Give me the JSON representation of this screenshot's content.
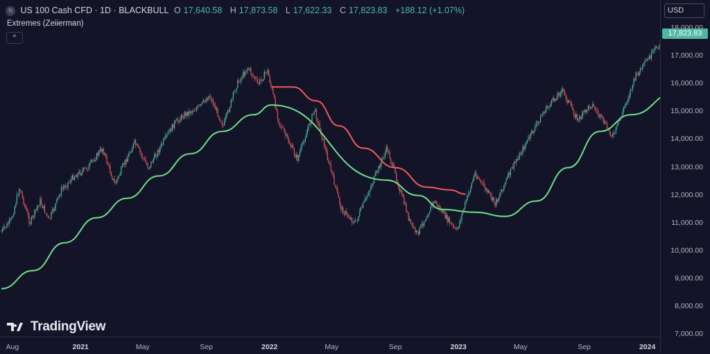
{
  "header": {
    "logo_letter": "N",
    "symbol": "US 100 Cash CFD · 1D · BLACKBULL",
    "ohlc": [
      {
        "key": "O",
        "value": "17,640.58"
      },
      {
        "key": "H",
        "value": "17,873.58"
      },
      {
        "key": "L",
        "value": "17,622.33"
      },
      {
        "key": "C",
        "value": "17,823.83"
      }
    ],
    "change": "+188.12 (+1.07%)"
  },
  "indicator": {
    "name": "Extremes (Zeiierman)",
    "collapse_glyph": "^"
  },
  "price_scale": {
    "currency": "USD",
    "ticks": [
      "18,000.00",
      "17,000.00",
      "16,000.00",
      "15,000.00",
      "14,000.00",
      "13,000.00",
      "12,000.00",
      "11,000.00",
      "10,000.00",
      "9,000.00",
      "8,000.00",
      "7,000.00"
    ],
    "last_price": "17,823.83"
  },
  "time_axis": [
    {
      "label": "Aug",
      "bold": false
    },
    {
      "label": "2021",
      "bold": true
    },
    {
      "label": "May",
      "bold": false
    },
    {
      "label": "Sep",
      "bold": false
    },
    {
      "label": "2022",
      "bold": true
    },
    {
      "label": "May",
      "bold": false
    },
    {
      "label": "Sep",
      "bold": false
    },
    {
      "label": "2023",
      "bold": true
    },
    {
      "label": "May",
      "bold": false
    },
    {
      "label": "Sep",
      "bold": false
    },
    {
      "label": "2024",
      "bold": true
    }
  ],
  "watermark": "TradingView",
  "colors": {
    "up": "#4fb8a4",
    "down": "#e0565b",
    "green_line": "#6fe08a",
    "red_line": "#f05a5a",
    "background": "#131428"
  },
  "chart_data": {
    "type": "line",
    "y_range": [
      7000,
      18000
    ],
    "series": [
      {
        "values": [
          [
            "2020-08-01",
            10700
          ],
          [
            "2020-08-20",
            11100
          ],
          [
            "2020-09-05",
            12300
          ],
          [
            "2020-09-25",
            11000
          ],
          [
            "2020-10-15",
            11800
          ],
          [
            "2020-11-01",
            11100
          ],
          [
            "2020-11-25",
            12200
          ],
          [
            "2020-12-20",
            12700
          ],
          [
            "2021-01-15",
            13000
          ],
          [
            "2021-02-12",
            13700
          ],
          [
            "2021-03-08",
            12400
          ],
          [
            "2021-04-15",
            13900
          ],
          [
            "2021-05-12",
            13000
          ],
          [
            "2021-06-30",
            14550
          ],
          [
            "2021-07-20",
            14900
          ],
          [
            "2021-08-20",
            15200
          ],
          [
            "2021-09-07",
            15600
          ],
          [
            "2021-10-04",
            14500
          ],
          [
            "2021-10-30",
            16000
          ],
          [
            "2021-11-20",
            16600
          ],
          [
            "2021-12-10",
            16000
          ],
          [
            "2021-12-28",
            16500
          ],
          [
            "2022-01-20",
            14600
          ],
          [
            "2022-02-24",
            13300
          ],
          [
            "2022-03-29",
            15100
          ],
          [
            "2022-05-20",
            11500
          ],
          [
            "2022-06-16",
            11000
          ],
          [
            "2022-08-16",
            13700
          ],
          [
            "2022-09-30",
            11000
          ],
          [
            "2022-10-13",
            10600
          ],
          [
            "2022-11-15",
            11800
          ],
          [
            "2022-12-28",
            10700
          ],
          [
            "2023-02-02",
            12800
          ],
          [
            "2023-03-13",
            11700
          ],
          [
            "2023-04-15",
            13000
          ],
          [
            "2023-06-15",
            15000
          ],
          [
            "2023-07-20",
            15800
          ],
          [
            "2023-08-20",
            14700
          ],
          [
            "2023-09-15",
            15300
          ],
          [
            "2023-10-27",
            14100
          ],
          [
            "2023-12-10",
            16300
          ],
          [
            "2024-01-15",
            17200
          ],
          [
            "2024-02-10",
            17900
          ],
          [
            "2024-02-20",
            17600
          ],
          [
            "2024-02-25",
            17823
          ]
        ]
      },
      {
        "values": [
          [
            "2020-08-01",
            8650
          ],
          [
            "2020-10-01",
            9300
          ],
          [
            "2020-12-01",
            10300
          ],
          [
            "2021-02-01",
            11200
          ],
          [
            "2021-04-01",
            11900
          ],
          [
            "2021-06-01",
            12700
          ],
          [
            "2021-08-01",
            13500
          ],
          [
            "2021-10-01",
            14300
          ],
          [
            "2021-12-01",
            14900
          ],
          [
            "2022-01-05",
            15250
          ],
          [
            "2022-08-15",
            12550
          ],
          [
            "2022-10-15",
            12000
          ],
          [
            "2022-12-01",
            11500
          ],
          [
            "2023-02-01",
            11400
          ],
          [
            "2023-04-01",
            11250
          ],
          [
            "2023-06-01",
            11800
          ],
          [
            "2023-08-01",
            13000
          ],
          [
            "2023-10-01",
            14300
          ],
          [
            "2023-12-01",
            14900
          ],
          [
            "2024-02-25",
            15700
          ]
        ]
      },
      {
        "values": [
          [
            "2022-01-05",
            15900
          ],
          [
            "2022-02-15",
            15900
          ],
          [
            "2022-04-01",
            15400
          ],
          [
            "2022-05-15",
            14500
          ],
          [
            "2022-07-01",
            13700
          ],
          [
            "2022-09-01",
            13000
          ],
          [
            "2022-11-01",
            12300
          ],
          [
            "2022-12-15",
            12200
          ],
          [
            "2023-01-15",
            12050
          ]
        ]
      }
    ]
  }
}
